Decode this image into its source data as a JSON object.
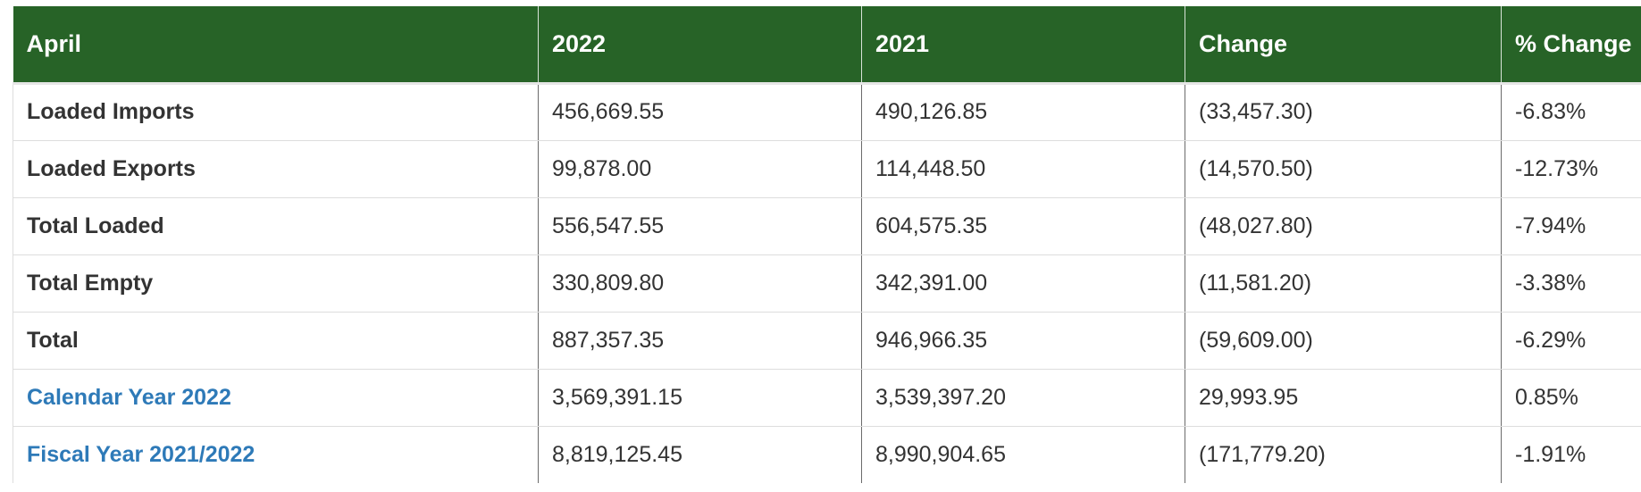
{
  "table": {
    "headers": [
      "April",
      "2022",
      "2021",
      "Change",
      "% Change"
    ],
    "rows": [
      {
        "label": "Loaded Imports",
        "is_link": false,
        "y2022": "456,669.55",
        "y2021": "490,126.85",
        "change": "(33,457.30)",
        "pct_change": "-6.83%"
      },
      {
        "label": "Loaded Exports",
        "is_link": false,
        "y2022": "99,878.00",
        "y2021": "114,448.50",
        "change": "(14,570.50)",
        "pct_change": "-12.73%"
      },
      {
        "label": "Total Loaded",
        "is_link": false,
        "y2022": "556,547.55",
        "y2021": "604,575.35",
        "change": "(48,027.80)",
        "pct_change": "-7.94%"
      },
      {
        "label": "Total Empty",
        "is_link": false,
        "y2022": "330,809.80",
        "y2021": "342,391.00",
        "change": "(11,581.20)",
        "pct_change": "-3.38%"
      },
      {
        "label": "Total",
        "is_link": false,
        "y2022": "887,357.35",
        "y2021": "946,966.35",
        "change": "(59,609.00)",
        "pct_change": "-6.29%"
      },
      {
        "label": "Calendar Year 2022",
        "is_link": true,
        "y2022": "3,569,391.15",
        "y2021": "3,539,397.20",
        "change": "29,993.95",
        "pct_change": "0.85%"
      },
      {
        "label": "Fiscal Year 2021/2022",
        "is_link": true,
        "y2022": "8,819,125.45",
        "y2021": "8,990,904.65",
        "change": "(171,779.20)",
        "pct_change": "-1.91%"
      }
    ]
  },
  "colors": {
    "header_background": "#276327",
    "header_text": "#ffffff",
    "link_text": "#2e7ab8",
    "body_text": "#333333"
  }
}
